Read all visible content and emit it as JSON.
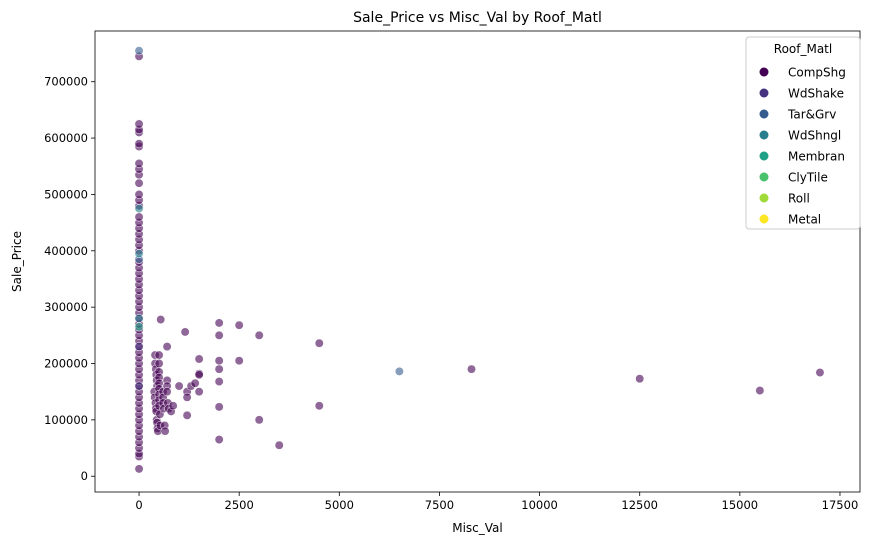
{
  "chart_data": {
    "type": "scatter",
    "title": "Sale_Price vs Misc_Val by Roof_Matl",
    "xlabel": "Misc_Val",
    "ylabel": "Sale_Price",
    "xlim": [
      -1100,
      18000
    ],
    "ylim": [
      -28000,
      790000
    ],
    "xticks": [
      0,
      2500,
      5000,
      7500,
      10000,
      12500,
      15000,
      17500
    ],
    "xtick_labels": [
      "0",
      "2500",
      "5000",
      "7500",
      "10000",
      "12500",
      "15000",
      "17500"
    ],
    "yticks": [
      0,
      100000,
      200000,
      300000,
      400000,
      500000,
      600000,
      700000
    ],
    "ytick_labels": [
      "0",
      "100000",
      "200000",
      "300000",
      "400000",
      "500000",
      "600000",
      "700000"
    ],
    "grid": false,
    "legend": {
      "title": "Roof_Matl",
      "placement": "top-right",
      "entries": [
        "CompShg",
        "WdShake",
        "Tar&Grv",
        "WdShngl",
        "Membran",
        "ClyTile",
        "Roll",
        "Metal"
      ]
    },
    "colors": {
      "CompShg": "#440154",
      "WdShake": "#46327e",
      "Tar&Grv": "#365c8d",
      "WdShngl": "#277f8e",
      "Membran": "#1fa187",
      "ClyTile": "#4ac16d",
      "Roll": "#a0da39",
      "Metal": "#fde725"
    },
    "series": [
      {
        "name": "CompShg",
        "points": [
          [
            0,
            13000
          ],
          [
            0,
            35000
          ],
          [
            0,
            40000
          ],
          [
            0,
            50000
          ],
          [
            0,
            60000
          ],
          [
            0,
            70000
          ],
          [
            0,
            80000
          ],
          [
            0,
            90000
          ],
          [
            0,
            100000
          ],
          [
            0,
            110000
          ],
          [
            0,
            120000
          ],
          [
            0,
            130000
          ],
          [
            0,
            140000
          ],
          [
            0,
            150000
          ],
          [
            0,
            160000
          ],
          [
            0,
            170000
          ],
          [
            0,
            180000
          ],
          [
            0,
            190000
          ],
          [
            0,
            200000
          ],
          [
            0,
            210000
          ],
          [
            0,
            220000
          ],
          [
            0,
            230000
          ],
          [
            0,
            240000
          ],
          [
            0,
            250000
          ],
          [
            0,
            260000
          ],
          [
            0,
            270000
          ],
          [
            0,
            280000
          ],
          [
            0,
            290000
          ],
          [
            0,
            300000
          ],
          [
            0,
            310000
          ],
          [
            0,
            320000
          ],
          [
            0,
            330000
          ],
          [
            0,
            340000
          ],
          [
            0,
            350000
          ],
          [
            0,
            360000
          ],
          [
            0,
            370000
          ],
          [
            0,
            380000
          ],
          [
            0,
            400000
          ],
          [
            0,
            410000
          ],
          [
            0,
            420000
          ],
          [
            0,
            430000
          ],
          [
            0,
            440000
          ],
          [
            0,
            450000
          ],
          [
            0,
            460000
          ],
          [
            0,
            480000
          ],
          [
            0,
            490000
          ],
          [
            0,
            500000
          ],
          [
            0,
            520000
          ],
          [
            0,
            535000
          ],
          [
            0,
            545000
          ],
          [
            0,
            555000
          ],
          [
            0,
            585000
          ],
          [
            0,
            590000
          ],
          [
            0,
            610000
          ],
          [
            0,
            615000
          ],
          [
            0,
            625000
          ],
          [
            0,
            745000
          ],
          [
            400,
            215000
          ],
          [
            400,
            200000
          ],
          [
            420,
            190000
          ],
          [
            430,
            180000
          ],
          [
            440,
            170000
          ],
          [
            450,
            160000
          ],
          [
            380,
            150000
          ],
          [
            390,
            140000
          ],
          [
            410,
            130000
          ],
          [
            420,
            120000
          ],
          [
            430,
            115000
          ],
          [
            440,
            100000
          ],
          [
            450,
            95000
          ],
          [
            460,
            85000
          ],
          [
            470,
            80000
          ],
          [
            500,
            215000
          ],
          [
            500,
            200000
          ],
          [
            500,
            185000
          ],
          [
            500,
            175000
          ],
          [
            500,
            165000
          ],
          [
            500,
            155000
          ],
          [
            500,
            145000
          ],
          [
            500,
            135000
          ],
          [
            500,
            125000
          ],
          [
            520,
            110000
          ],
          [
            530,
            90000
          ],
          [
            540,
            278000
          ],
          [
            600,
            150000
          ],
          [
            600,
            140000
          ],
          [
            600,
            130000
          ],
          [
            620,
            120000
          ],
          [
            640,
            90000
          ],
          [
            650,
            80000
          ],
          [
            700,
            230000
          ],
          [
            700,
            170000
          ],
          [
            700,
            160000
          ],
          [
            700,
            150000
          ],
          [
            720,
            130000
          ],
          [
            740,
            120000
          ],
          [
            800,
            115000
          ],
          [
            850,
            125000
          ],
          [
            1000,
            160000
          ],
          [
            1150,
            256000
          ],
          [
            1200,
            150000
          ],
          [
            1200,
            140000
          ],
          [
            1200,
            108000
          ],
          [
            1300,
            160000
          ],
          [
            1400,
            165000
          ],
          [
            1500,
            208000
          ],
          [
            1500,
            182000
          ],
          [
            1500,
            180000
          ],
          [
            1500,
            150000
          ],
          [
            2000,
            272000
          ],
          [
            2000,
            250000
          ],
          [
            2000,
            205000
          ],
          [
            2000,
            190000
          ],
          [
            2000,
            168000
          ],
          [
            2000,
            123000
          ],
          [
            2000,
            65000
          ],
          [
            2500,
            268000
          ],
          [
            2500,
            205000
          ],
          [
            3000,
            250000
          ],
          [
            3000,
            100000
          ],
          [
            3500,
            55000
          ],
          [
            4500,
            236000
          ],
          [
            4500,
            125000
          ],
          [
            8300,
            190000
          ],
          [
            12500,
            173000
          ],
          [
            15500,
            152000
          ],
          [
            17000,
            184000
          ]
        ]
      },
      {
        "name": "Tar&Grv",
        "points": [
          [
            0,
            755000
          ],
          [
            0,
            385000
          ],
          [
            6500,
            186000
          ]
        ]
      },
      {
        "name": "WdShngl",
        "points": [
          [
            0,
            475000
          ],
          [
            0,
            395000
          ],
          [
            0,
            280000
          ]
        ]
      },
      {
        "name": "WdShake",
        "points": [
          [
            0,
            230000
          ],
          [
            0,
            160000
          ]
        ]
      },
      {
        "name": "Membran",
        "points": [
          [
            0,
            265000
          ]
        ]
      }
    ]
  }
}
